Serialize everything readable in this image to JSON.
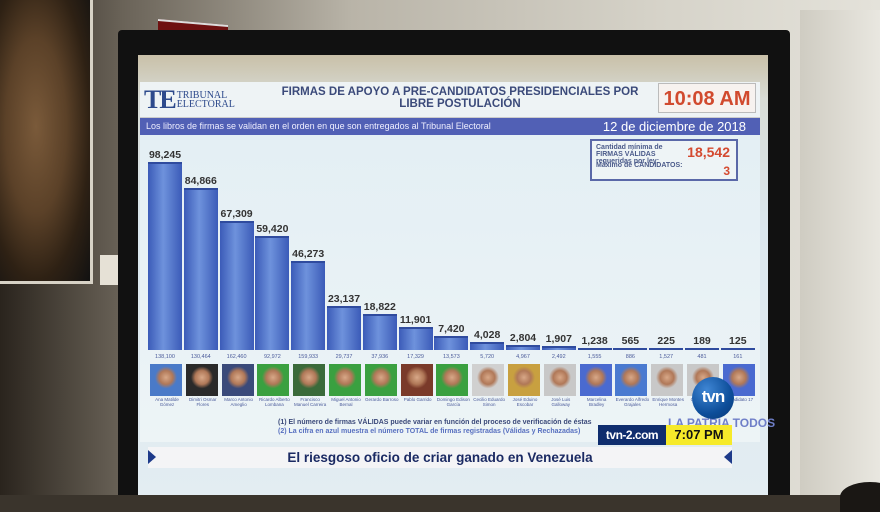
{
  "slide": {
    "logo": {
      "big": "TE",
      "line1": "TRIBUNAL",
      "line2": "ELECTORAL"
    },
    "title": "FIRMAS DE APOYO A PRE-CANDIDATOS PRESIDENCIALES POR LIBRE POSTULACIÓN",
    "clock": "10:08 AM",
    "subtitle": "Los libros de firmas se validan en el orden en que son entregados al Tribunal Electoral",
    "date": "12 de diciembre de 2018",
    "info": {
      "min_label": "Cantidad mínima de FIRMAS VÁLIDAS requeridas por ley:",
      "min_value": "18,542",
      "max_label": "Máximo de CANDIDATOS:",
      "max_value": "3"
    },
    "footnotes": [
      "(1) El número de firmas VÁLIDAS puede variar en función del proceso de verificación de éstas",
      "(2) La cifra en azul muestra el número TOTAL de firmas registradas (Válidas y Rechazadas)"
    ],
    "brand": "LA PATRIA TODOS"
  },
  "chart_data": {
    "type": "bar",
    "title": "FIRMAS DE APOYO A PRE-CANDIDATOS PRESIDENCIALES POR LIBRE POSTULACIÓN",
    "xlabel": "",
    "ylabel": "Firmas válidas",
    "categories": [
      "Ana Matilde Gómez",
      "Dimitri Osmar Flores",
      "Marco Antonio Ameglio",
      "Ricardo Alberto Lombana",
      "Francisco Manuel Carreira",
      "Miguel Antonio Bernal",
      "Gerardo Barroso",
      "Pablo Garrido",
      "Domingo Edison García",
      "Cecilio Eduardo Simon",
      "José Eduino Escobar",
      "José Luis Galloway",
      "Marcelina Bradley",
      "Everardo Alfredo Grajales",
      "Enrique Montes Hermosa",
      "Candidato 16",
      "Candidato 17"
    ],
    "series": [
      {
        "name": "Firmas válidas",
        "values": [
          98245,
          84866,
          67309,
          59420,
          46273,
          23137,
          18822,
          11901,
          7420,
          4028,
          2804,
          1907,
          1238,
          565,
          225,
          189,
          125
        ]
      },
      {
        "name": "Total firmas registradas",
        "values": [
          138100,
          130464,
          162460,
          92972,
          159933,
          29737,
          37936,
          17329,
          13573,
          5720,
          4967,
          2492,
          1555,
          886,
          1527,
          481,
          161
        ]
      }
    ],
    "value_labels": [
      "98,245",
      "84,866",
      "67,309",
      "59,420",
      "46,273",
      "23,137",
      "18,822",
      "11,901",
      "7,420",
      "4,028",
      "2,804",
      "1,907",
      "1,238",
      "565",
      "225",
      "189",
      "125"
    ],
    "total_labels": [
      "138,100",
      "130,464",
      "162,460",
      "92,972",
      "159,933",
      "29,737",
      "37,936",
      "17,329",
      "13,573",
      "5,720",
      "4,967",
      "2,492",
      "1,555",
      "886",
      "1,527",
      "481",
      "161"
    ],
    "ylim": [
      0,
      100000
    ],
    "grid": false,
    "legend": "none"
  },
  "broadcast": {
    "channel": "tvn",
    "site": "tvn-2.com",
    "time": "7:07 PM",
    "headline": "El riesgoso oficio de criar ganado en Venezuela"
  }
}
